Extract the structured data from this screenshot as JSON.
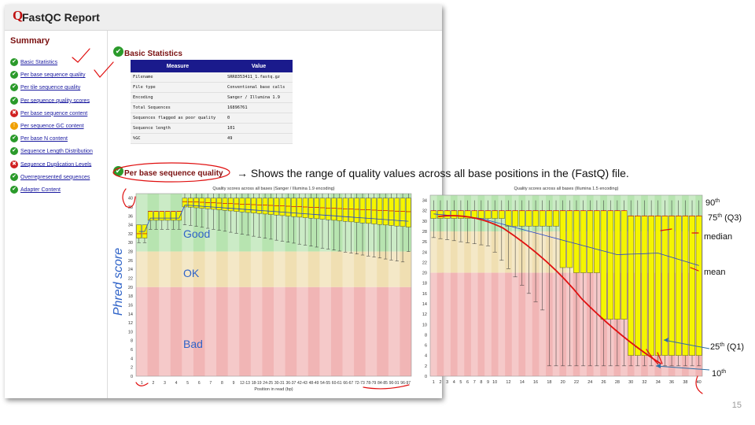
{
  "header": {
    "title": "FastQC Report",
    "logo_glyph": "Q"
  },
  "sidebar": {
    "title": "Summary",
    "items": [
      {
        "label": "Basic Statistics",
        "status": "pass"
      },
      {
        "label": "Per base sequence quality",
        "status": "pass"
      },
      {
        "label": "Per tile sequence quality",
        "status": "pass"
      },
      {
        "label": "Per sequence quality scores",
        "status": "pass"
      },
      {
        "label": "Per base sequence content",
        "status": "fail"
      },
      {
        "label": "Per sequence GC content",
        "status": "warn"
      },
      {
        "label": "Per base N content",
        "status": "pass"
      },
      {
        "label": "Sequence Length Distribution",
        "status": "pass"
      },
      {
        "label": "Sequence Duplication Levels",
        "status": "fail"
      },
      {
        "label": "Overrepresented sequences",
        "status": "pass"
      },
      {
        "label": "Adapter Content",
        "status": "pass"
      }
    ]
  },
  "basic_stats": {
    "title": "Basic Statistics",
    "headers": [
      "Measure",
      "Value"
    ],
    "rows": [
      [
        "Filename",
        "SRR8353411_1.fastq.gz"
      ],
      [
        "File type",
        "Conventional base calls"
      ],
      [
        "Encoding",
        "Sanger / Illumina 1.9"
      ],
      [
        "Total Sequences",
        "16896761"
      ],
      [
        "Sequences flagged as poor quality",
        "0"
      ],
      [
        "Sequence length",
        "101"
      ],
      [
        "%GC",
        "49"
      ]
    ]
  },
  "per_base": {
    "title": "Per base sequence quality",
    "note": "→ Shows the range of quality values across all base positions in the (FastQ) file."
  },
  "left_plot": {
    "title": "Quality scores across all bases (Sanger / Illumina 1.9 encoding)",
    "xlabel": "Position in read (bp)",
    "x_tick_labels": [
      "1",
      "2",
      "3",
      "4",
      "5",
      "6",
      "7",
      "8",
      "9",
      "12-13",
      "18-19",
      "24-25",
      "30-31",
      "36-37",
      "42-43",
      "48-49",
      "54-55",
      "60-61",
      "66-67",
      "72-73",
      "78-79",
      "84-85",
      "90-91",
      "96-97"
    ],
    "y_ticks": [
      0,
      2,
      4,
      6,
      8,
      10,
      12,
      14,
      16,
      18,
      20,
      22,
      24,
      26,
      28,
      30,
      32,
      34,
      36,
      38,
      40
    ],
    "zones": {
      "good": "Good",
      "ok": "OK",
      "bad": "Bad"
    },
    "zone_colors": {
      "good": "#b7e4b0",
      "ok": "#f0dfb2",
      "bad": "#f1b5b5"
    },
    "box_color": "#f5f500",
    "ylabel_annotation": "Phred score"
  },
  "right_plot": {
    "title": "Quality scores across all bases (Illumina 1.5 encoding)",
    "x_tick_labels": [
      "1",
      "2",
      "3",
      "4",
      "5",
      "6",
      "7",
      "8",
      "9",
      "10",
      "12",
      "14",
      "16",
      "18",
      "20",
      "22",
      "24",
      "26",
      "28",
      "30",
      "32",
      "34",
      "36",
      "38",
      "40"
    ],
    "y_ticks": [
      0,
      2,
      4,
      6,
      8,
      10,
      12,
      14,
      16,
      18,
      20,
      22,
      24,
      26,
      28,
      30,
      32,
      34
    ],
    "legend_labels": {
      "p90": "90",
      "p75": "75",
      "q3": "(Q3)",
      "median": "median",
      "mean": "mean",
      "p25": "25",
      "q1": "(Q1)",
      "p10": "10",
      "sup": "th"
    }
  },
  "slide_number": "15",
  "annotation_colors": {
    "ink": "#e01010",
    "arrow": "#2c6fa6",
    "zone_text": "#2f63c8"
  }
}
